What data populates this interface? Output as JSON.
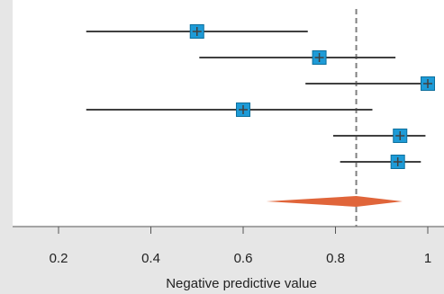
{
  "chart_data": {
    "type": "forest",
    "title": "",
    "xlabel": "Negative predictive value",
    "ylabel": "",
    "xlim": [
      0.1,
      1.03
    ],
    "xticks": [
      0.2,
      0.4,
      0.6,
      0.8,
      1
    ],
    "xtick_labels": [
      "0.2",
      "0.4",
      "0.6",
      "0.8",
      "1"
    ],
    "grid": false,
    "studies": [
      {
        "estimate": 0.5,
        "lower": 0.26,
        "upper": 0.74
      },
      {
        "estimate": 0.765,
        "lower": 0.505,
        "upper": 0.93
      },
      {
        "estimate": 1.0,
        "lower": 0.735,
        "upper": 1.0
      },
      {
        "estimate": 0.6,
        "lower": 0.26,
        "upper": 0.88
      },
      {
        "estimate": 0.94,
        "lower": 0.795,
        "upper": 0.995
      },
      {
        "estimate": 0.935,
        "lower": 0.81,
        "upper": 0.985
      }
    ],
    "pooled": {
      "estimate": 0.845,
      "lower": 0.65,
      "upper": 0.945
    },
    "reference_line": 0.845,
    "colors": {
      "marker": "#1e9bd7",
      "marker_border": "#0d6f9c",
      "ci_line": "#404040",
      "diamond": "#e0653a",
      "reference": "#808080",
      "plot_background": "#ffffff",
      "page_background": "#e6e6e6"
    }
  }
}
